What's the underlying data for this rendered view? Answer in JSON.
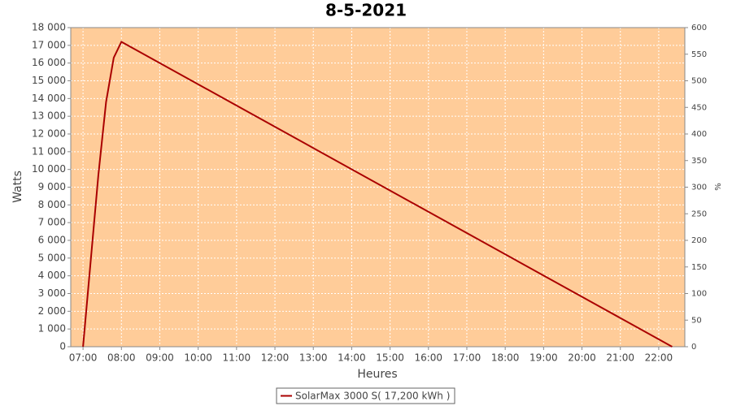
{
  "chart_data": {
    "type": "line",
    "title": "8-5-2021",
    "x_label": "Heures",
    "y_label": "Watts",
    "y2_label": "%",
    "x": [
      7.0,
      7.4,
      7.6,
      7.8,
      8.0,
      22.35
    ],
    "series": [
      {
        "name": "SolarMax 3000 S( 17,200 kWh )",
        "color": "#aa0000",
        "values": [
          0,
          9700,
          13800,
          16300,
          17200,
          0
        ]
      }
    ],
    "xlim": [
      6.68,
      22.68
    ],
    "xticks": [
      {
        "value": 7,
        "label": "07:00"
      },
      {
        "value": 8,
        "label": "08:00"
      },
      {
        "value": 9,
        "label": "09:00"
      },
      {
        "value": 10,
        "label": "10:00"
      },
      {
        "value": 11,
        "label": "11:00"
      },
      {
        "value": 12,
        "label": "12:00"
      },
      {
        "value": 13,
        "label": "13:00"
      },
      {
        "value": 14,
        "label": "14:00"
      },
      {
        "value": 15,
        "label": "15:00"
      },
      {
        "value": 16,
        "label": "16:00"
      },
      {
        "value": 17,
        "label": "17:00"
      },
      {
        "value": 18,
        "label": "18:00"
      },
      {
        "value": 19,
        "label": "19:00"
      },
      {
        "value": 20,
        "label": "20:00"
      },
      {
        "value": 21,
        "label": "21:00"
      },
      {
        "value": 22,
        "label": "22:00"
      }
    ],
    "ylim": [
      0,
      18000
    ],
    "yticks": [
      0,
      {
        "value": 1000,
        "label": "1 000"
      },
      {
        "value": 2000,
        "label": "2 000"
      },
      {
        "value": 3000,
        "label": "3 000"
      },
      {
        "value": 4000,
        "label": "4 000"
      },
      {
        "value": 5000,
        "label": "5 000"
      },
      {
        "value": 6000,
        "label": "6 000"
      },
      {
        "value": 7000,
        "label": "7 000"
      },
      {
        "value": 8000,
        "label": "8 000"
      },
      {
        "value": 9000,
        "label": "9 000"
      },
      {
        "value": 10000,
        "label": "10 000"
      },
      {
        "value": 11000,
        "label": "11 000"
      },
      {
        "value": 12000,
        "label": "12 000"
      },
      {
        "value": 13000,
        "label": "13 000"
      },
      {
        "value": 14000,
        "label": "14 000"
      },
      {
        "value": 15000,
        "label": "15 000"
      },
      {
        "value": 16000,
        "label": "16 000"
      },
      {
        "value": 17000,
        "label": "17 000"
      },
      {
        "value": 18000,
        "label": "18 000"
      }
    ],
    "y2lim": [
      0,
      600
    ],
    "y2ticks": [
      0,
      50,
      100,
      150,
      200,
      250,
      300,
      350,
      400,
      450,
      500,
      550,
      600
    ],
    "grid": true,
    "plot_background": "#ffcc99",
    "legend": "bottom"
  }
}
